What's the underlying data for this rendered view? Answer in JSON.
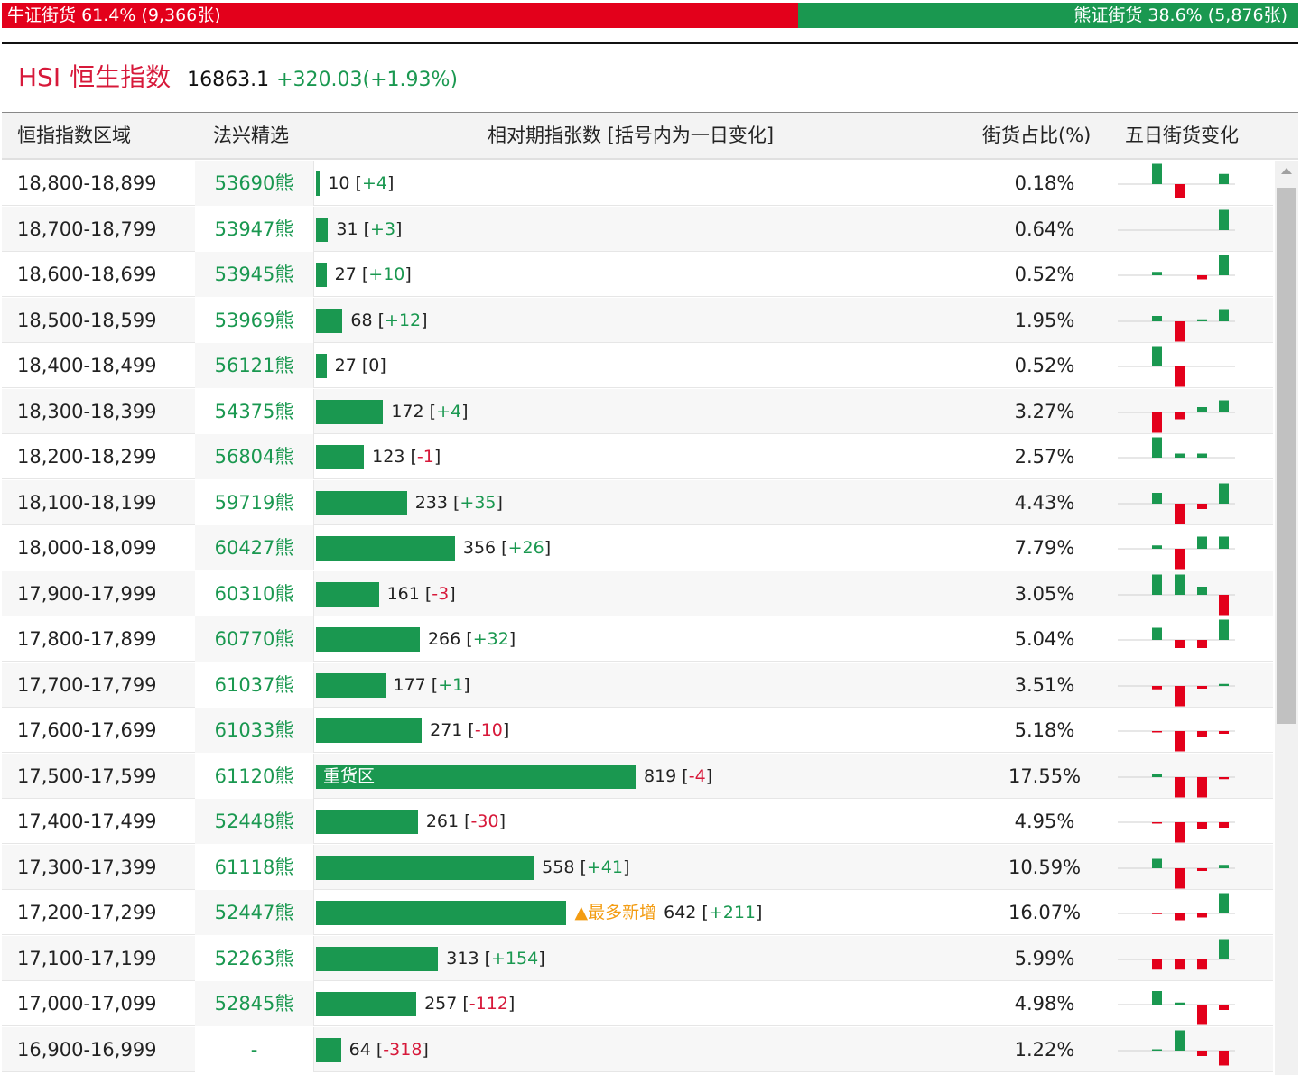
{
  "ratio": {
    "bull_label": "牛证街货",
    "bull_pct": "61.4%",
    "bull_count": "(9,366张)",
    "bull_fraction": 0.614,
    "bear_label": "熊证街货",
    "bear_pct": "38.6%",
    "bear_count": "(5,876张)",
    "colors": {
      "bull": "#e3001b",
      "bear": "#1a9850"
    }
  },
  "index": {
    "code": "HSI",
    "name": "恒生指数",
    "price": "16863.1",
    "change": "+320.03(+1.93%)"
  },
  "table": {
    "headers": {
      "range": "恒指指数区域",
      "pick": "法兴精选",
      "count": "相对期指张数 [括号内为一日变化]",
      "pct": "街货占比(%)",
      "trend": "五日街货变化"
    },
    "bar_max": 819,
    "rows": [
      {
        "range": "18,800-18,899",
        "pick": "53690熊",
        "count": 10,
        "count_text": "10",
        "delta": "+4",
        "pct": "0.18%",
        "spark": [
          3,
          -2,
          0,
          0,
          1.5
        ]
      },
      {
        "range": "18,700-18,799",
        "pick": "53947熊",
        "count": 31,
        "count_text": "31",
        "delta": "+3",
        "pct": "0.64%",
        "spark": [
          0,
          0,
          0,
          0,
          3
        ]
      },
      {
        "range": "18,600-18,699",
        "pick": "53945熊",
        "count": 27,
        "count_text": "27",
        "delta": "+10",
        "pct": "0.52%",
        "spark": [
          0.5,
          0,
          0,
          -0.6,
          3
        ]
      },
      {
        "range": "18,500-18,599",
        "pick": "53969熊",
        "count": 68,
        "count_text": "68",
        "delta": "+12",
        "pct": "1.95%",
        "spark": [
          0.8,
          -3,
          0,
          0.3,
          1.8
        ]
      },
      {
        "range": "18,400-18,499",
        "pick": "56121熊",
        "count": 27,
        "count_text": "27",
        "delta": "0",
        "pct": "0.52%",
        "spark": [
          3,
          -3,
          0,
          0,
          0
        ]
      },
      {
        "range": "18,300-18,399",
        "pick": "54375熊",
        "count": 172,
        "count_text": "172",
        "delta": "+4",
        "pct": "3.27%",
        "spark": [
          -3,
          -1,
          0,
          0.8,
          1.8
        ]
      },
      {
        "range": "18,200-18,299",
        "pick": "56804熊",
        "count": 123,
        "count_text": "123",
        "delta": "-1",
        "pct": "2.57%",
        "spark": [
          3,
          0.6,
          0,
          0.6,
          0
        ]
      },
      {
        "range": "18,100-18,199",
        "pick": "59719熊",
        "count": 233,
        "count_text": "233",
        "delta": "+35",
        "pct": "4.43%",
        "spark": [
          1.6,
          -3,
          0,
          -0.8,
          3
        ]
      },
      {
        "range": "18,000-18,099",
        "pick": "60427熊",
        "count": 356,
        "count_text": "356",
        "delta": "+26",
        "pct": "7.79%",
        "spark": [
          0.5,
          -3,
          0,
          1.8,
          1.8
        ]
      },
      {
        "range": "17,900-17,999",
        "pick": "60310熊",
        "count": 161,
        "count_text": "161",
        "delta": "-3",
        "pct": "3.05%",
        "spark": [
          3,
          3,
          0,
          1.2,
          -3
        ]
      },
      {
        "range": "17,800-17,899",
        "pick": "60770熊",
        "count": 266,
        "count_text": "266",
        "delta": "+32",
        "pct": "5.04%",
        "spark": [
          1.8,
          -1.2,
          0,
          -1.2,
          3
        ]
      },
      {
        "range": "17,700-17,799",
        "pick": "61037熊",
        "count": 177,
        "count_text": "177",
        "delta": "+1",
        "pct": "3.51%",
        "spark": [
          -0.5,
          -3,
          0,
          -0.4,
          0.3
        ]
      },
      {
        "range": "17,600-17,699",
        "pick": "61033熊",
        "count": 271,
        "count_text": "271",
        "delta": "-10",
        "pct": "5.18%",
        "spark": [
          -0.2,
          -3,
          0,
          -0.8,
          -0.4
        ]
      },
      {
        "range": "17,500-17,599",
        "pick": "61120熊",
        "count": 819,
        "count_text": "819",
        "delta": "-4",
        "pct": "17.55%",
        "spark": [
          0.5,
          -3,
          0,
          -3,
          -0.3
        ],
        "tag": "重货区"
      },
      {
        "range": "17,400-17,499",
        "pick": "52448熊",
        "count": 261,
        "count_text": "261",
        "delta": "-30",
        "pct": "4.95%",
        "spark": [
          -0.2,
          -3,
          0,
          -1,
          -0.8
        ]
      },
      {
        "range": "17,300-17,399",
        "pick": "61118熊",
        "count": 558,
        "count_text": "558",
        "delta": "+41",
        "pct": "10.59%",
        "spark": [
          1.4,
          -3,
          0,
          -0.4,
          0.5
        ]
      },
      {
        "range": "17,200-17,299",
        "pick": "52447熊",
        "count": 642,
        "count_text": "642",
        "delta": "+211",
        "pct": "16.07%",
        "spark": [
          -0.1,
          -1,
          0,
          -0.6,
          3
        ],
        "note": "▲最多新增"
      },
      {
        "range": "17,100-17,199",
        "pick": "52263熊",
        "count": 313,
        "count_text": "313",
        "delta": "+154",
        "pct": "5.99%",
        "spark": [
          -1.5,
          -1.5,
          0,
          -1.5,
          3
        ]
      },
      {
        "range": "17,000-17,099",
        "pick": "52845熊",
        "count": 257,
        "count_text": "257",
        "delta": "-112",
        "pct": "4.98%",
        "spark": [
          2,
          0.3,
          0,
          -3,
          -0.8
        ]
      },
      {
        "range": "16,900-16,999",
        "pick": "-",
        "count": 64,
        "count_text": "64",
        "delta": "-318",
        "pct": "1.22%",
        "spark": [
          0.2,
          3,
          0,
          -0.8,
          -2.2
        ]
      }
    ]
  }
}
